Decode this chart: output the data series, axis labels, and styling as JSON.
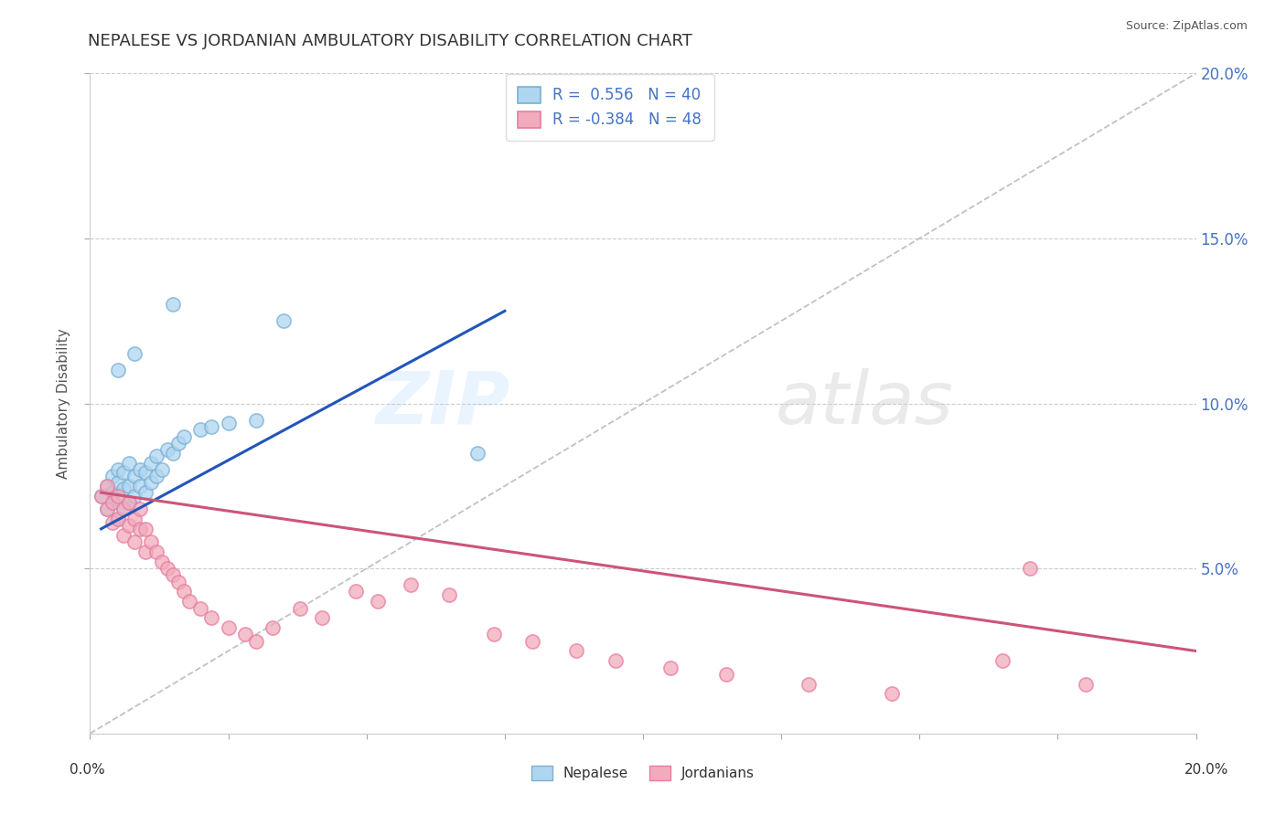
{
  "title": "NEPALESE VS JORDANIAN AMBULATORY DISABILITY CORRELATION CHART",
  "source": "Source: ZipAtlas.com",
  "ylabel": "Ambulatory Disability",
  "xlim": [
    0.0,
    0.2
  ],
  "ylim": [
    0.0,
    0.2
  ],
  "ytick_labels": [
    "5.0%",
    "10.0%",
    "15.0%",
    "20.0%"
  ],
  "ytick_vals": [
    0.05,
    0.1,
    0.15,
    0.2
  ],
  "nepalese_R": 0.556,
  "nepalese_N": 40,
  "jordanian_R": -0.384,
  "jordanian_N": 48,
  "nepalese_color": "#7BAFD4",
  "nepalese_face": "#AED6F1",
  "jordanian_color": "#E87DA0",
  "jordanian_face": "#F1ABBC",
  "trend_blue_color": "#2255BB",
  "trend_pink_color": "#CC5577",
  "ref_line_color": "#BBBBBB",
  "background_color": "#FFFFFF",
  "nepalese_x": [
    0.002,
    0.003,
    0.003,
    0.004,
    0.004,
    0.004,
    0.005,
    0.005,
    0.005,
    0.005,
    0.006,
    0.006,
    0.006,
    0.007,
    0.007,
    0.007,
    0.008,
    0.008,
    0.009,
    0.009,
    0.01,
    0.01,
    0.011,
    0.011,
    0.012,
    0.012,
    0.013,
    0.014,
    0.015,
    0.016,
    0.017,
    0.02,
    0.022,
    0.025,
    0.03,
    0.015,
    0.008,
    0.005,
    0.07,
    0.035
  ],
  "nepalese_y": [
    0.072,
    0.068,
    0.075,
    0.07,
    0.073,
    0.078,
    0.065,
    0.071,
    0.076,
    0.08,
    0.068,
    0.074,
    0.079,
    0.07,
    0.075,
    0.082,
    0.072,
    0.078,
    0.075,
    0.08,
    0.073,
    0.079,
    0.076,
    0.082,
    0.078,
    0.084,
    0.08,
    0.086,
    0.085,
    0.088,
    0.09,
    0.092,
    0.093,
    0.094,
    0.095,
    0.13,
    0.115,
    0.11,
    0.085,
    0.125
  ],
  "jordanian_x": [
    0.002,
    0.003,
    0.003,
    0.004,
    0.004,
    0.005,
    0.005,
    0.006,
    0.006,
    0.007,
    0.007,
    0.008,
    0.008,
    0.009,
    0.009,
    0.01,
    0.01,
    0.011,
    0.012,
    0.013,
    0.014,
    0.015,
    0.016,
    0.017,
    0.018,
    0.02,
    0.022,
    0.025,
    0.028,
    0.03,
    0.033,
    0.038,
    0.042,
    0.048,
    0.052,
    0.058,
    0.065,
    0.073,
    0.08,
    0.088,
    0.095,
    0.105,
    0.115,
    0.13,
    0.145,
    0.165,
    0.18,
    0.17
  ],
  "jordanian_y": [
    0.072,
    0.068,
    0.075,
    0.064,
    0.07,
    0.065,
    0.072,
    0.06,
    0.068,
    0.063,
    0.07,
    0.058,
    0.065,
    0.062,
    0.068,
    0.055,
    0.062,
    0.058,
    0.055,
    0.052,
    0.05,
    0.048,
    0.046,
    0.043,
    0.04,
    0.038,
    0.035,
    0.032,
    0.03,
    0.028,
    0.032,
    0.038,
    0.035,
    0.043,
    0.04,
    0.045,
    0.042,
    0.03,
    0.028,
    0.025,
    0.022,
    0.02,
    0.018,
    0.015,
    0.012,
    0.022,
    0.015,
    0.05
  ],
  "blue_trend_x": [
    0.002,
    0.075
  ],
  "blue_trend_y_start": 0.062,
  "blue_trend_y_end": 0.128,
  "pink_trend_x": [
    0.002,
    0.2
  ],
  "pink_trend_y_start": 0.073,
  "pink_trend_y_end": 0.025
}
